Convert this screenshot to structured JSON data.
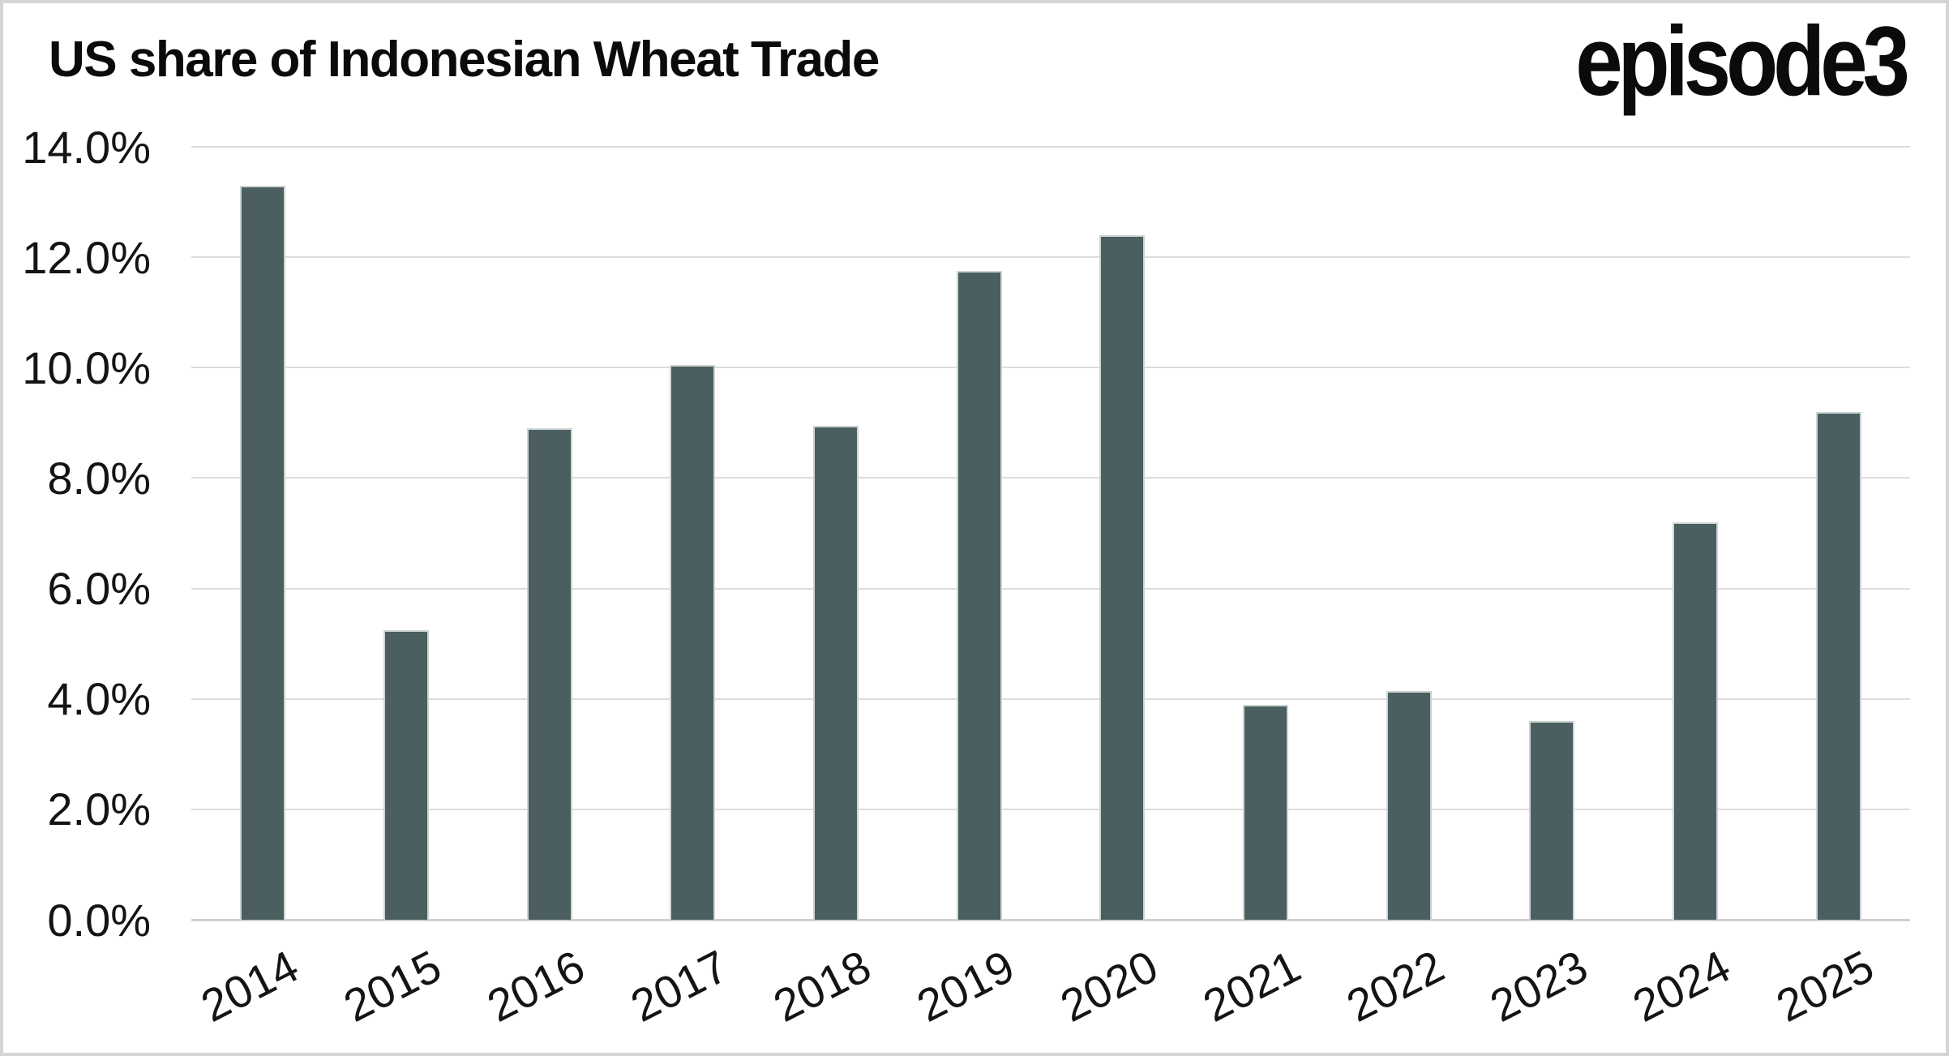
{
  "branding": {
    "logo_text": "episode3"
  },
  "chart_data": {
    "type": "bar",
    "title": "US share of Indonesian Wheat Trade",
    "xlabel": "",
    "ylabel": "",
    "categories": [
      "2014",
      "2015",
      "2016",
      "2017",
      "2018",
      "2019",
      "2020",
      "2021",
      "2022",
      "2023",
      "2024",
      "2025"
    ],
    "values": [
      13.3,
      5.25,
      8.9,
      10.05,
      8.95,
      11.75,
      12.4,
      3.9,
      4.15,
      3.6,
      7.2,
      9.2
    ],
    "unit": "%",
    "ylim": [
      0,
      14
    ],
    "ytick_step": 2,
    "ytick_labels": [
      "0.0%",
      "2.0%",
      "4.0%",
      "6.0%",
      "8.0%",
      "10.0%",
      "12.0%",
      "14.0%"
    ],
    "grid": true,
    "legend": "none",
    "xtick_rotation_deg": -27,
    "bar_color": "#4b5e60",
    "gridline_color": "#dcdcdc",
    "axisline_color": "#d0d0d0",
    "text_color": "#141414"
  }
}
